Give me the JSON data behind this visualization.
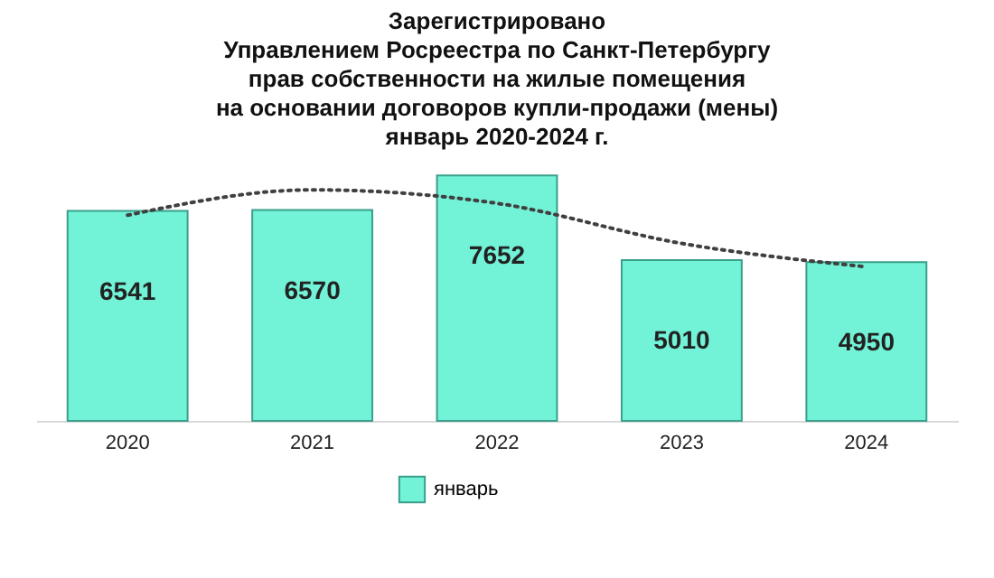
{
  "chart_data": {
    "type": "bar",
    "title": [
      "Зарегистрировано",
      "Управлением Росреестра по Санкт-Петербургу",
      "прав собственности на жилые помещения",
      "на основании договоров купли-продажи (мены)",
      "январь 2020-2024 г."
    ],
    "categories": [
      "2020",
      "2021",
      "2022",
      "2023",
      "2024"
    ],
    "series": [
      {
        "name": "январь",
        "color": "#72f2d6",
        "values": [
          6541,
          6570,
          7652,
          5010,
          4950
        ],
        "value_labels": [
          "6541",
          "6570",
          "7652",
          "5010",
          "4950"
        ]
      },
      {
        "type": "line",
        "color": "#404040",
        "line_style": "dotted",
        "values": [
          6410,
          7200,
          6780,
          5530,
          4800
        ]
      }
    ],
    "grid": false,
    "legend": "bottom"
  }
}
